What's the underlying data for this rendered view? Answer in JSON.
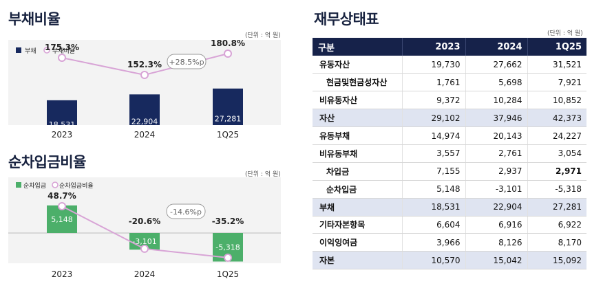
{
  "debt": {
    "title": "부채비율",
    "unit": "(단위 : 억 원)",
    "change": "+28.5%p",
    "chart_data": {
      "type": "bar",
      "categories": [
        "2023",
        "2024",
        "1Q25"
      ],
      "series": [
        {
          "name": "부채",
          "values": [
            18531,
            22904,
            27281
          ],
          "labels": [
            "18,531",
            "22,904",
            "27,281"
          ],
          "color": "#17295e"
        },
        {
          "name": "부채비율",
          "values": [
            175.3,
            152.3,
            180.8
          ],
          "labels": [
            "175.3%",
            "152.3%",
            "180.8%"
          ],
          "color": "#d8a4d6"
        }
      ]
    }
  },
  "netbor": {
    "title": "순차입금비율",
    "unit": "(단위 : 억 원)",
    "change": "-14.6%p",
    "chart_data": {
      "type": "bar",
      "categories": [
        "2023",
        "2024",
        "1Q25"
      ],
      "series": [
        {
          "name": "순차입금",
          "values": [
            5148,
            -3101,
            -5318
          ],
          "labels": [
            "5,148",
            "-3,101",
            "-5,318"
          ],
          "color": "#4caf6a"
        },
        {
          "name": "순차입금비율",
          "values": [
            48.7,
            -20.6,
            -35.2
          ],
          "labels": [
            "48.7%",
            "-20.6%",
            "-35.2%"
          ],
          "color": "#d8a4d6"
        }
      ]
    }
  },
  "bs": {
    "title": "재무상태표",
    "unit": "(단위 : 억 원)",
    "headers": [
      "구분",
      "2023",
      "2024",
      "1Q25"
    ],
    "rows": [
      {
        "label": "유동자산",
        "v": [
          "19,730",
          "27,662",
          "31,521"
        ]
      },
      {
        "label": "현금및현금성자산",
        "v": [
          "1,761",
          "5,698",
          "7,921"
        ]
      },
      {
        "label": "비유동자산",
        "v": [
          "9,372",
          "10,284",
          "10,852"
        ]
      },
      {
        "label": "자산",
        "v": [
          "29,102",
          "37,946",
          "42,373"
        ]
      },
      {
        "label": "유동부채",
        "v": [
          "14,974",
          "20,143",
          "24,227"
        ]
      },
      {
        "label": "비유동부채",
        "v": [
          "3,557",
          "2,761",
          "3,054"
        ]
      },
      {
        "label": "차입금",
        "v": [
          "7,155",
          "2,937",
          "2,971"
        ]
      },
      {
        "label": "순차입금",
        "v": [
          "5,148",
          "-3,101",
          "-5,318"
        ]
      },
      {
        "label": "부채",
        "v": [
          "18,531",
          "22,904",
          "27,281"
        ]
      },
      {
        "label": "기타자본항목",
        "v": [
          "6,604",
          "6,916",
          "6,922"
        ]
      },
      {
        "label": "이익잉여금",
        "v": [
          "3,966",
          "8,126",
          "8,170"
        ]
      },
      {
        "label": "자본",
        "v": [
          "10,570",
          "15,042",
          "15,092"
        ]
      }
    ]
  }
}
